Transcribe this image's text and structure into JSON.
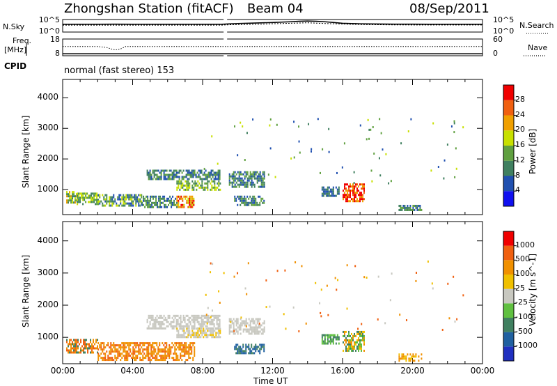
{
  "header": {
    "station": "Zhongshan Station (fitACF)",
    "beam": "Beam 04",
    "date": "08/Sep/2011"
  },
  "left_labels": {
    "nsky": "N.Sky",
    "freq": "Freq.",
    "freq_unit": "[MHz]",
    "cpid": "CPID"
  },
  "right_labels": {
    "nsearch": "N.Search",
    "nave": "Nave"
  },
  "cpid_text": "normal (fast stereo) 153",
  "chart_data": [
    {
      "type": "line",
      "panel": "noise",
      "left_ticks": [
        "10^5",
        "10^0"
      ],
      "right_ticks": [
        "10^5",
        "10^0"
      ],
      "gap": [
        9.2,
        9.4
      ],
      "series": [
        {
          "name": "N.Sky",
          "x": [
            0,
            1,
            2,
            3,
            4,
            5,
            6,
            7,
            8,
            9.1,
            9.5,
            10,
            11,
            12,
            13,
            13.5,
            14,
            14.5,
            15,
            15.5,
            16,
            17,
            18,
            19,
            20,
            21,
            22,
            23,
            24
          ],
          "y": [
            0.62,
            0.62,
            0.62,
            0.63,
            0.62,
            0.62,
            0.62,
            0.62,
            0.62,
            0.62,
            0.65,
            0.68,
            0.72,
            0.76,
            0.82,
            0.86,
            0.88,
            0.86,
            0.82,
            0.76,
            0.7,
            0.66,
            0.64,
            0.63,
            0.63,
            0.62,
            0.62,
            0.62,
            0.62
          ]
        },
        {
          "name": "N.Search",
          "x": [
            0,
            2,
            4,
            6,
            8,
            9.1,
            9.5,
            11,
            13,
            14,
            15,
            17,
            19,
            21,
            24
          ],
          "y": [
            0.55,
            0.55,
            0.55,
            0.55,
            0.55,
            0.55,
            0.58,
            0.62,
            0.7,
            0.74,
            0.68,
            0.6,
            0.57,
            0.56,
            0.56
          ]
        }
      ]
    },
    {
      "type": "line",
      "panel": "frequency",
      "left_ticks": [
        "18",
        "8"
      ],
      "right_ticks": [
        "60",
        "0"
      ],
      "gap": [
        9.2,
        9.4
      ],
      "series": [
        {
          "name": "Nave",
          "x": [
            0,
            2,
            2.5,
            2.8,
            3.0,
            3.3,
            3.6,
            5,
            8,
            9.1,
            9.5,
            12,
            16,
            20,
            24
          ],
          "y": [
            0.55,
            0.55,
            0.5,
            0.4,
            0.35,
            0.4,
            0.55,
            0.55,
            0.55,
            0.55,
            0.55,
            0.55,
            0.55,
            0.55,
            0.55
          ]
        },
        {
          "name": "Freq",
          "x": [
            0,
            24
          ],
          "y": [
            0.12,
            0.12
          ]
        }
      ]
    },
    {
      "type": "heatmap",
      "panel": "power",
      "xlabel": "",
      "ylabel": "Slant Range [km]",
      "xlim": [
        0,
        24
      ],
      "ylim": [
        180,
        4600
      ],
      "yticks": [
        1000,
        2000,
        3000,
        4000
      ],
      "colorbar": {
        "label": "Power [dB]",
        "ticks": [
          "4",
          "8",
          "12",
          "16",
          "20",
          "24",
          "28"
        ],
        "colors": [
          "#1010f0",
          "#2050b0",
          "#408060",
          "#60a040",
          "#c8e000",
          "#f0a000",
          "#f06010",
          "#f00000"
        ]
      },
      "regions": [
        {
          "t0": 0.2,
          "t1": 0.8,
          "r0": 550,
          "r1": 950,
          "levels": [
            2,
            4,
            5,
            3
          ]
        },
        {
          "t0": 0.8,
          "t1": 2.0,
          "r0": 500,
          "r1": 900,
          "levels": [
            2,
            3,
            4
          ]
        },
        {
          "t0": 2.0,
          "t1": 4.5,
          "r0": 450,
          "r1": 850,
          "levels": [
            1,
            2,
            3,
            4
          ]
        },
        {
          "t0": 4.5,
          "t1": 6.5,
          "r0": 400,
          "r1": 800,
          "levels": [
            1,
            2,
            3
          ]
        },
        {
          "t0": 6.5,
          "t1": 7.5,
          "r0": 450,
          "r1": 800,
          "levels": [
            4,
            5,
            6,
            7
          ]
        },
        {
          "t0": 4.8,
          "t1": 9.0,
          "r0": 1350,
          "r1": 1650,
          "levels": [
            1,
            2,
            3
          ]
        },
        {
          "t0": 6.5,
          "t1": 9.0,
          "r0": 1000,
          "r1": 1300,
          "levels": [
            2,
            3,
            4
          ]
        },
        {
          "t0": 9.5,
          "t1": 11.5,
          "r0": 1100,
          "r1": 1600,
          "levels": [
            1,
            2,
            3
          ]
        },
        {
          "t0": 9.8,
          "t1": 11.5,
          "r0": 500,
          "r1": 800,
          "levels": [
            1,
            2,
            3
          ]
        },
        {
          "t0": 16.0,
          "t1": 17.2,
          "r0": 600,
          "r1": 1200,
          "levels": [
            5,
            6,
            7,
            8
          ]
        },
        {
          "t0": 14.8,
          "t1": 15.8,
          "r0": 800,
          "r1": 1100,
          "levels": [
            1,
            2
          ]
        },
        {
          "t0": 19.2,
          "t1": 20.5,
          "r0": 300,
          "r1": 500,
          "levels": [
            1,
            2,
            3
          ]
        }
      ]
    },
    {
      "type": "heatmap",
      "panel": "velocity",
      "xlabel": "Time UT",
      "ylabel": "Slant Range [km]",
      "xlim": [
        0,
        24
      ],
      "ylim": [
        180,
        4600
      ],
      "xticks": [
        "00:00",
        "04:00",
        "08:00",
        "12:00",
        "16:00",
        "20:00",
        "00:00"
      ],
      "yticks": [
        1000,
        2000,
        3000,
        4000
      ],
      "colorbar": {
        "label": "Velocity [m s^-1]",
        "ticks": [
          "1000",
          "500",
          "100",
          "25",
          "-25",
          "-100",
          "-500",
          "-1000"
        ],
        "colors": [
          "#2030c0",
          "#2060a0",
          "#408060",
          "#60c040",
          "#c8c8c0",
          "#f0c000",
          "#f09000",
          "#f06010",
          "#f00000"
        ]
      },
      "regions": [
        {
          "t0": 0.2,
          "t1": 2.0,
          "r0": 500,
          "r1": 950,
          "levels": [
            6,
            7,
            2
          ]
        },
        {
          "t0": 2.0,
          "t1": 7.5,
          "r0": 300,
          "r1": 850,
          "levels": [
            6,
            7,
            6
          ]
        },
        {
          "t0": 4.8,
          "t1": 9.0,
          "r0": 1300,
          "r1": 1700,
          "levels": [
            4,
            4,
            4
          ]
        },
        {
          "t0": 6.5,
          "t1": 9.0,
          "r0": 1000,
          "r1": 1300,
          "levels": [
            4,
            5,
            4
          ]
        },
        {
          "t0": 9.5,
          "t1": 11.5,
          "r0": 1100,
          "r1": 1600,
          "levels": [
            4,
            4,
            4
          ]
        },
        {
          "t0": 9.8,
          "t1": 11.5,
          "r0": 500,
          "r1": 800,
          "levels": [
            1,
            2
          ]
        },
        {
          "t0": 16.0,
          "t1": 17.2,
          "r0": 600,
          "r1": 1200,
          "levels": [
            2,
            5,
            6,
            3
          ]
        },
        {
          "t0": 14.8,
          "t1": 15.8,
          "r0": 800,
          "r1": 1100,
          "levels": [
            2,
            3
          ]
        },
        {
          "t0": 19.2,
          "t1": 20.5,
          "r0": 300,
          "r1": 500,
          "levels": [
            5,
            6
          ]
        }
      ]
    }
  ]
}
